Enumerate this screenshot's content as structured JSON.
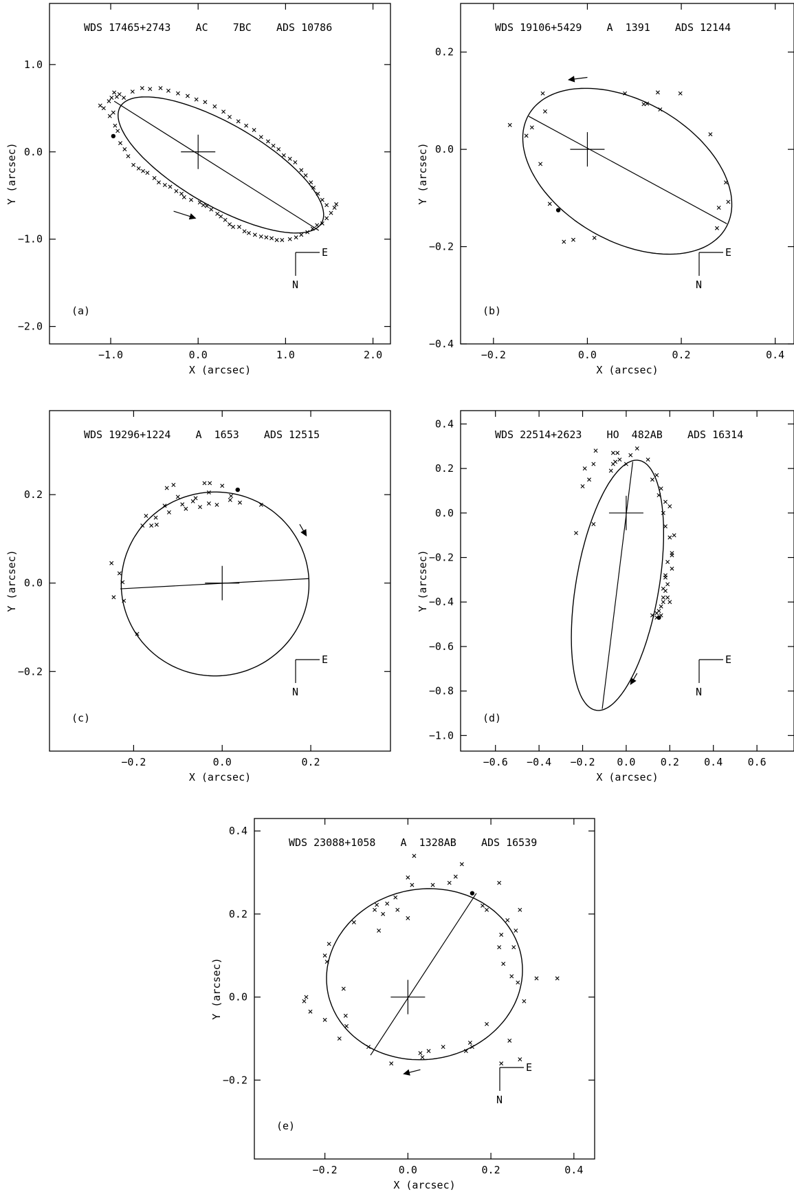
{
  "chart_data": [
    {
      "type": "scatter",
      "panel_label": "(a)",
      "title": "WDS 17465+2743    AC    7BC    ADS 10786",
      "xlabel": "X (arcsec)",
      "ylabel": "Y (arcsec)",
      "xlim": [
        -1.7,
        2.2
      ],
      "ylim": [
        -2.2,
        1.7
      ],
      "xticks": [
        -1.0,
        0.0,
        1.0,
        2.0
      ],
      "xtick_labels": [
        "−1.0",
        "0.0",
        "1.0",
        "2.0"
      ],
      "yticks": [
        -2.0,
        -1.0,
        0.0,
        1.0
      ],
      "ytick_labels": [
        "−2.0",
        "−1.0",
        "0.0",
        "1.0"
      ],
      "orientation_labels": {
        "east": "E",
        "north": "N"
      },
      "ellipse": {
        "center": [
          0.26,
          -0.15
        ],
        "semi_major": 1.33,
        "semi_minor": 0.47,
        "angle_deg": -30
      },
      "line_of_apsides": [
        [
          -0.96,
          0.58
        ],
        [
          1.38,
          -0.9
        ]
      ],
      "periastron": [
        -0.97,
        0.18
      ],
      "arrow": {
        "from": [
          -0.28,
          -0.68
        ],
        "to": [
          -0.03,
          -0.76
        ]
      },
      "observations": [
        [
          -1.12,
          0.53
        ],
        [
          -1.08,
          0.5
        ],
        [
          -1.02,
          0.58
        ],
        [
          -0.99,
          0.62
        ],
        [
          -0.96,
          0.68
        ],
        [
          -0.93,
          0.63
        ],
        [
          -0.9,
          0.66
        ],
        [
          -0.97,
          0.45
        ],
        [
          -1.01,
          0.41
        ],
        [
          -0.95,
          0.3
        ],
        [
          -0.92,
          0.24
        ],
        [
          -0.89,
          0.1
        ],
        [
          -0.84,
          0.03
        ],
        [
          -0.8,
          -0.05
        ],
        [
          -0.74,
          -0.15
        ],
        [
          -0.68,
          -0.19
        ],
        [
          -0.63,
          -0.22
        ],
        [
          -0.58,
          -0.24
        ],
        [
          -0.5,
          -0.3
        ],
        [
          -0.45,
          -0.35
        ],
        [
          -0.38,
          -0.38
        ],
        [
          -0.32,
          -0.4
        ],
        [
          -0.25,
          -0.45
        ],
        [
          -0.19,
          -0.48
        ],
        [
          -0.16,
          -0.52
        ],
        [
          -0.08,
          -0.55
        ],
        [
          0.02,
          -0.58
        ],
        [
          0.06,
          -0.61
        ],
        [
          0.1,
          -0.62
        ],
        [
          0.15,
          -0.66
        ],
        [
          0.22,
          -0.71
        ],
        [
          0.26,
          -0.74
        ],
        [
          0.31,
          -0.78
        ],
        [
          0.36,
          -0.83
        ],
        [
          0.4,
          -0.86
        ],
        [
          0.47,
          -0.86
        ],
        [
          0.53,
          -0.91
        ],
        [
          0.58,
          -0.93
        ],
        [
          0.65,
          -0.95
        ],
        [
          0.72,
          -0.97
        ],
        [
          0.78,
          -0.98
        ],
        [
          0.84,
          -0.99
        ],
        [
          0.9,
          -1.01
        ],
        [
          0.96,
          -1.01
        ],
        [
          1.05,
          -1.0
        ],
        [
          1.12,
          -0.98
        ],
        [
          1.18,
          -0.95
        ],
        [
          1.25,
          -0.92
        ],
        [
          1.31,
          -0.88
        ],
        [
          1.36,
          -0.84
        ],
        [
          1.42,
          -0.82
        ],
        [
          1.47,
          -0.76
        ],
        [
          1.52,
          -0.7
        ],
        [
          1.56,
          -0.64
        ],
        [
          1.58,
          -0.6
        ],
        [
          1.47,
          -0.61
        ],
        [
          1.42,
          -0.55
        ],
        [
          1.37,
          -0.48
        ],
        [
          1.32,
          -0.41
        ],
        [
          1.29,
          -0.35
        ],
        [
          1.23,
          -0.27
        ],
        [
          1.18,
          -0.21
        ],
        [
          1.11,
          -0.12
        ],
        [
          1.05,
          -0.08
        ],
        [
          0.98,
          -0.04
        ],
        [
          0.92,
          0.03
        ],
        [
          0.86,
          0.07
        ],
        [
          0.8,
          0.12
        ],
        [
          0.72,
          0.17
        ],
        [
          0.64,
          0.25
        ],
        [
          0.55,
          0.3
        ],
        [
          0.46,
          0.35
        ],
        [
          0.36,
          0.4
        ],
        [
          0.29,
          0.46
        ],
        [
          0.19,
          0.52
        ],
        [
          0.08,
          0.57
        ],
        [
          -0.02,
          0.6
        ],
        [
          -0.12,
          0.64
        ],
        [
          -0.23,
          0.67
        ],
        [
          -0.34,
          0.7
        ],
        [
          -0.43,
          0.73
        ],
        [
          -0.55,
          0.72
        ],
        [
          -0.64,
          0.73
        ],
        [
          -0.75,
          0.69
        ],
        [
          -0.85,
          0.62
        ]
      ]
    },
    {
      "type": "scatter",
      "panel_label": "(b)",
      "title": "WDS 19106+5429    A  1391    ADS 12144",
      "xlabel": "X (arcsec)",
      "ylabel": "Y (arcsec)",
      "xlim": [
        -0.27,
        0.44
      ],
      "ylim": [
        -0.4,
        0.3
      ],
      "xticks": [
        -0.2,
        0.0,
        0.2,
        0.4
      ],
      "xtick_labels": [
        "−0.2",
        "0.0",
        "0.2",
        "0.4"
      ],
      "yticks": [
        -0.4,
        -0.2,
        0.0,
        0.2
      ],
      "ytick_labels": [
        "−0.4",
        "−0.2",
        "0.0",
        "0.2"
      ],
      "orientation_labels": {
        "east": "E",
        "north": "N"
      },
      "ellipse": {
        "center": [
          0.085,
          -0.045
        ],
        "semi_major": 0.24,
        "semi_minor": 0.145,
        "angle_deg": -28
      },
      "line_of_apsides": [
        [
          -0.125,
          0.068
        ],
        [
          0.297,
          -0.153
        ]
      ],
      "periastron": [
        -0.062,
        -0.125
      ],
      "arrow": {
        "from": [
          0.0,
          0.148
        ],
        "to": [
          -0.04,
          0.143
        ]
      },
      "observations": [
        [
          -0.165,
          0.05
        ],
        [
          -0.13,
          0.028
        ],
        [
          -0.118,
          0.045
        ],
        [
          -0.095,
          0.115
        ],
        [
          -0.09,
          0.078
        ],
        [
          -0.1,
          -0.03
        ],
        [
          -0.08,
          -0.112
        ],
        [
          -0.05,
          -0.19
        ],
        [
          -0.03,
          -0.186
        ],
        [
          0.015,
          -0.182
        ],
        [
          0.08,
          0.115
        ],
        [
          0.12,
          0.093
        ],
        [
          0.127,
          0.094
        ],
        [
          0.15,
          0.117
        ],
        [
          0.155,
          0.082
        ],
        [
          0.198,
          0.115
        ],
        [
          0.262,
          0.031
        ],
        [
          0.28,
          -0.12
        ],
        [
          0.295,
          -0.068
        ],
        [
          0.3,
          -0.108
        ],
        [
          0.276,
          -0.162
        ]
      ]
    },
    {
      "type": "scatter",
      "panel_label": "(c)",
      "title": "WDS 19296+1224    A  1653    ADS 12515",
      "xlabel": "X (arcsec)",
      "ylabel": "Y (arcsec)",
      "xlim": [
        -0.39,
        0.38
      ],
      "ylim": [
        -0.38,
        0.39
      ],
      "xticks": [
        -0.2,
        0.0,
        0.2
      ],
      "xtick_labels": [
        "−0.2",
        "0.0",
        "0.2"
      ],
      "yticks": [
        -0.2,
        0.0,
        0.2
      ],
      "ytick_labels": [
        "−0.2",
        "0.0",
        "0.2"
      ],
      "orientation_labels": {
        "east": "E",
        "north": "N"
      },
      "ellipse": {
        "center": [
          -0.016,
          -0.002
        ],
        "semi_major": 0.212,
        "semi_minor": 0.208,
        "angle_deg": 3
      },
      "line_of_apsides": [
        [
          -0.23,
          -0.013
        ],
        [
          0.195,
          0.01
        ]
      ],
      "periastron": [
        0.035,
        0.211
      ],
      "arrow": {
        "from": [
          0.175,
          0.133
        ],
        "to": [
          0.19,
          0.107
        ]
      },
      "observations": [
        [
          -0.25,
          0.045
        ],
        [
          -0.245,
          -0.032
        ],
        [
          -0.232,
          0.022
        ],
        [
          -0.225,
          0.002
        ],
        [
          -0.222,
          -0.04
        ],
        [
          -0.192,
          -0.115
        ],
        [
          -0.18,
          0.13
        ],
        [
          -0.172,
          0.152
        ],
        [
          -0.16,
          0.13
        ],
        [
          -0.15,
          0.148
        ],
        [
          -0.148,
          0.132
        ],
        [
          -0.13,
          0.175
        ],
        [
          -0.12,
          0.16
        ],
        [
          -0.125,
          0.215
        ],
        [
          -0.1,
          0.195
        ],
        [
          -0.11,
          0.222
        ],
        [
          -0.09,
          0.178
        ],
        [
          -0.082,
          0.168
        ],
        [
          -0.066,
          0.185
        ],
        [
          -0.06,
          0.192
        ],
        [
          -0.05,
          0.172
        ],
        [
          -0.04,
          0.226
        ],
        [
          -0.03,
          0.205
        ],
        [
          -0.028,
          0.226
        ],
        [
          -0.03,
          0.18
        ],
        [
          -0.012,
          0.177
        ],
        [
          0.0,
          0.22
        ],
        [
          0.02,
          0.197
        ],
        [
          0.018,
          0.188
        ],
        [
          0.04,
          0.182
        ],
        [
          0.088,
          0.177
        ]
      ]
    },
    {
      "type": "scatter",
      "panel_label": "(d)",
      "title": "WDS 22514+2623    HO  482AB    ADS 16314",
      "xlabel": "X (arcsec)",
      "ylabel": "Y (arcsec)",
      "xlim": [
        -0.76,
        0.77
      ],
      "ylim": [
        -1.07,
        0.46
      ],
      "xticks": [
        -0.6,
        -0.4,
        -0.2,
        0.0,
        0.2,
        0.4,
        0.6
      ],
      "xtick_labels": [
        "−0.6",
        "−0.4",
        "−0.2",
        "0.0",
        "0.2",
        "0.4",
        "0.6"
      ],
      "yticks": [
        -1.0,
        -0.8,
        -0.6,
        -0.4,
        -0.2,
        0.0,
        0.2,
        0.4
      ],
      "ytick_labels": [
        "−1.0",
        "−0.8",
        "−0.6",
        "−0.4",
        "−0.2",
        "0.0",
        "0.2",
        "0.4"
      ],
      "orientation_labels": {
        "east": "E",
        "north": "N"
      },
      "ellipse": {
        "center": [
          -0.04,
          -0.325
        ],
        "semi_major": 0.57,
        "semi_minor": 0.19,
        "angle_deg": 80
      },
      "line_of_apsides": [
        [
          0.03,
          0.23
        ],
        [
          -0.11,
          -0.88
        ]
      ],
      "periastron": [
        0.15,
        -0.47
      ],
      "arrow": {
        "from": [
          0.05,
          -0.72
        ],
        "to": [
          0.02,
          -0.77
        ]
      },
      "observations": [
        [
          -0.23,
          -0.09
        ],
        [
          -0.2,
          0.12
        ],
        [
          -0.19,
          0.2
        ],
        [
          -0.17,
          0.15
        ],
        [
          -0.14,
          0.28
        ],
        [
          -0.15,
          0.22
        ],
        [
          -0.06,
          0.27
        ],
        [
          -0.06,
          0.22
        ],
        [
          -0.05,
          0.23
        ],
        [
          -0.04,
          0.27
        ],
        [
          -0.03,
          0.24
        ],
        [
          0.0,
          0.22
        ],
        [
          0.02,
          0.26
        ],
        [
          0.05,
          0.29
        ],
        [
          0.1,
          0.24
        ],
        [
          0.12,
          0.15
        ],
        [
          0.14,
          0.17
        ],
        [
          0.15,
          0.08
        ],
        [
          0.16,
          0.11
        ],
        [
          0.18,
          0.05
        ],
        [
          0.17,
          0.0
        ],
        [
          0.18,
          -0.06
        ],
        [
          0.2,
          -0.11
        ],
        [
          0.21,
          -0.18
        ],
        [
          0.19,
          -0.22
        ],
        [
          0.21,
          -0.25
        ],
        [
          0.18,
          -0.28
        ],
        [
          0.19,
          -0.32
        ],
        [
          0.18,
          -0.35
        ],
        [
          0.19,
          -0.38
        ],
        [
          0.17,
          -0.4
        ],
        [
          0.16,
          -0.42
        ],
        [
          0.15,
          -0.44
        ],
        [
          0.16,
          -0.46
        ],
        [
          0.14,
          -0.47
        ],
        [
          0.14,
          -0.45
        ],
        [
          0.12,
          -0.46
        ],
        [
          0.2,
          -0.4
        ],
        [
          0.17,
          -0.34
        ],
        [
          0.18,
          -0.29
        ],
        [
          0.17,
          -0.38
        ],
        [
          0.2,
          0.03
        ],
        [
          0.22,
          -0.1
        ],
        [
          0.21,
          -0.19
        ],
        [
          -0.15,
          -0.05
        ],
        [
          -0.07,
          0.19
        ]
      ]
    },
    {
      "type": "scatter",
      "panel_label": "(e)",
      "title": "WDS 23088+1058    A  1328AB    ADS 16539",
      "xlabel": "X (arcsec)",
      "ylabel": "Y (arcsec)",
      "xlim": [
        -0.37,
        0.45
      ],
      "ylim": [
        -0.39,
        0.43
      ],
      "xticks": [
        -0.2,
        0.0,
        0.2,
        0.4
      ],
      "xtick_labels": [
        "−0.2",
        "0.0",
        "0.2",
        "0.4"
      ],
      "yticks": [
        -0.2,
        0.0,
        0.2,
        0.4
      ],
      "ytick_labels": [
        "−0.2",
        "0.0",
        "0.2",
        "0.4"
      ],
      "orientation_labels": {
        "east": "E",
        "north": "N"
      },
      "ellipse": {
        "center": [
          0.04,
          0.055
        ],
        "semi_major": 0.237,
        "semi_minor": 0.205,
        "angle_deg": 10
      },
      "line_of_apsides": [
        [
          -0.09,
          -0.14
        ],
        [
          0.165,
          0.25
        ]
      ],
      "periastron": [
        0.155,
        0.25
      ],
      "arrow": {
        "from": [
          0.03,
          -0.175
        ],
        "to": [
          -0.01,
          -0.185
        ]
      },
      "observations": [
        [
          -0.25,
          -0.01
        ],
        [
          -0.245,
          0.0
        ],
        [
          -0.235,
          -0.035
        ],
        [
          -0.2,
          -0.055
        ],
        [
          -0.2,
          0.1
        ],
        [
          -0.195,
          0.085
        ],
        [
          -0.19,
          0.128
        ],
        [
          -0.165,
          -0.1
        ],
        [
          -0.155,
          0.02
        ],
        [
          -0.15,
          -0.045
        ],
        [
          -0.148,
          -0.07
        ],
        [
          -0.13,
          0.18
        ],
        [
          -0.095,
          -0.12
        ],
        [
          -0.08,
          0.21
        ],
        [
          -0.075,
          0.222
        ],
        [
          -0.07,
          0.16
        ],
        [
          -0.06,
          0.2
        ],
        [
          -0.05,
          0.225
        ],
        [
          -0.04,
          -0.16
        ],
        [
          -0.03,
          0.24
        ],
        [
          -0.025,
          0.21
        ],
        [
          0.0,
          0.19
        ],
        [
          0.0,
          0.288
        ],
        [
          0.01,
          0.27
        ],
        [
          0.015,
          0.34
        ],
        [
          0.03,
          -0.135
        ],
        [
          0.035,
          -0.145
        ],
        [
          0.05,
          -0.13
        ],
        [
          0.06,
          0.27
        ],
        [
          0.085,
          -0.12
        ],
        [
          0.1,
          0.275
        ],
        [
          0.115,
          0.29
        ],
        [
          0.13,
          0.32
        ],
        [
          0.14,
          -0.13
        ],
        [
          0.15,
          -0.11
        ],
        [
          0.155,
          -0.12
        ],
        [
          0.18,
          0.22
        ],
        [
          0.19,
          0.21
        ],
        [
          0.19,
          -0.065
        ],
        [
          0.22,
          0.12
        ],
        [
          0.22,
          0.275
        ],
        [
          0.225,
          0.15
        ],
        [
          0.225,
          -0.16
        ],
        [
          0.23,
          0.08
        ],
        [
          0.24,
          0.185
        ],
        [
          0.245,
          -0.105
        ],
        [
          0.25,
          0.05
        ],
        [
          0.255,
          0.12
        ],
        [
          0.26,
          0.16
        ],
        [
          0.265,
          0.035
        ],
        [
          0.27,
          -0.15
        ],
        [
          0.28,
          -0.01
        ],
        [
          0.27,
          0.21
        ],
        [
          0.31,
          0.045
        ],
        [
          0.36,
          0.045
        ]
      ]
    }
  ]
}
